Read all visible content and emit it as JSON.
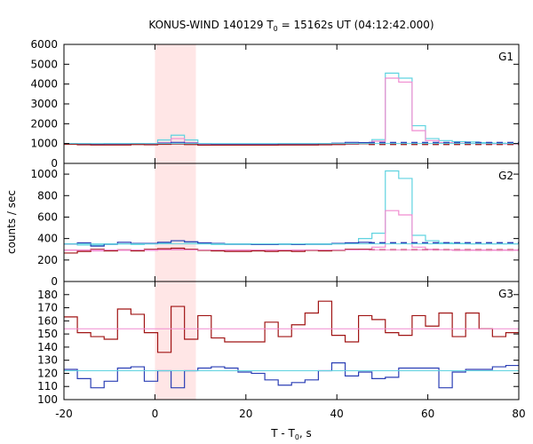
{
  "title": {
    "main": "KONUS-WIND 140129 T",
    "sub": "0",
    "rest": " = 15162s UT (04:12:42.000)"
  },
  "xlabel": {
    "main": "T - T",
    "sub": "0",
    "rest": ", s"
  },
  "ylabel": "counts / sec",
  "colors": {
    "shade": "#ffe6e6",
    "cyan": "#5fd3e0",
    "pink": "#f08cd0",
    "blue": "#2b3fb5",
    "red": "#a01414"
  },
  "chart_data": {
    "type": "line",
    "x_axis": {
      "range": [
        -20,
        80
      ],
      "ticks": [
        -20,
        0,
        20,
        40,
        60,
        80
      ]
    },
    "shaded_interval": [
      0,
      9
    ],
    "bin_width": 2.944,
    "panels": [
      {
        "label": "G1",
        "ylim": [
          0,
          6000
        ],
        "yticks": [
          0,
          1000,
          2000,
          3000,
          4000,
          5000,
          6000
        ],
        "series": [
          {
            "color": "cyan",
            "style": "step",
            "values": [
              1000,
              980,
              980,
              990,
              990,
              1000,
              980,
              1180,
              1420,
              1180,
              960,
              960,
              960,
              960,
              960,
              960,
              960,
              960,
              960,
              960,
              980,
              1000,
              1050,
              1200,
              4550,
              4300,
              1900,
              1250,
              1150,
              1100,
              1080,
              1050,
              1020,
              1000
            ]
          },
          {
            "color": "pink",
            "style": "step",
            "values": [
              980,
              960,
              960,
              960,
              960,
              980,
              960,
              1050,
              1250,
              1050,
              940,
              940,
              940,
              940,
              940,
              940,
              940,
              940,
              940,
              940,
              950,
              970,
              1000,
              1120,
              4300,
              4100,
              1650,
              1150,
              1050,
              1020,
              1000,
              990,
              980,
              980
            ]
          },
          {
            "color": "blue",
            "style": "step",
            "values": [
              1000,
              990,
              980,
              990,
              990,
              1000,
              1000,
              1020,
              1060,
              1020,
              990,
              980,
              980,
              980,
              980,
              980,
              990,
              990,
              990,
              1000,
              1020,
              1060,
              1050
            ]
          },
          {
            "color": "red",
            "style": "step",
            "values": [
              960,
              940,
              930,
              930,
              930,
              950,
              940,
              960,
              980,
              950,
              920,
              920,
              920,
              920,
              920,
              920,
              930,
              930,
              930,
              940,
              950,
              980,
              990
            ]
          },
          {
            "color": "blue",
            "style": "dashed",
            "x": [
              47,
              80
            ],
            "values": [
              1050,
              1050
            ]
          },
          {
            "color": "red",
            "style": "dashed",
            "x": [
              47,
              80
            ],
            "values": [
              960,
              960
            ]
          },
          {
            "color": "cyan",
            "style": "flat",
            "x": [
              -20,
              80
            ],
            "values": [
              1000,
              1000
            ]
          }
        ]
      },
      {
        "label": "G2",
        "ylim": [
          0,
          1100
        ],
        "yticks": [
          0,
          200,
          400,
          600,
          800,
          1000
        ],
        "series": [
          {
            "color": "cyan",
            "style": "step",
            "values": [
              350,
              340,
              340,
              345,
              350,
              345,
              350,
              360,
              380,
              365,
              350,
              345,
              345,
              345,
              345,
              345,
              345,
              345,
              345,
              345,
              350,
              360,
              400,
              450,
              1030,
              960,
              430,
              380,
              360,
              355,
              350,
              350,
              350,
              350
            ]
          },
          {
            "color": "pink",
            "style": "step",
            "values": [
              290,
              290,
              285,
              290,
              290,
              290,
              290,
              295,
              300,
              295,
              290,
              290,
              290,
              290,
              290,
              290,
              290,
              290,
              290,
              290,
              290,
              295,
              300,
              320,
              660,
              620,
              320,
              300,
              295,
              290,
              290,
              290,
              290,
              290
            ]
          },
          {
            "color": "blue",
            "style": "step",
            "values": [
              350,
              360,
              330,
              350,
              365,
              355,
              355,
              365,
              380,
              370,
              360,
              355,
              350,
              350,
              345,
              345,
              350,
              345,
              350,
              350,
              355,
              360,
              365
            ]
          },
          {
            "color": "red",
            "style": "step",
            "values": [
              265,
              280,
              300,
              285,
              295,
              285,
              300,
              305,
              310,
              300,
              290,
              285,
              280,
              280,
              285,
              280,
              285,
              280,
              290,
              285,
              290,
              300,
              300
            ]
          },
          {
            "color": "blue",
            "style": "dashed",
            "x": [
              47,
              80
            ],
            "values": [
              360,
              360
            ]
          },
          {
            "color": "red",
            "style": "dashed",
            "x": [
              47,
              80
            ],
            "values": [
              295,
              295
            ]
          },
          {
            "color": "cyan",
            "style": "flat",
            "x": [
              -20,
              80
            ],
            "values": [
              350,
              350
            ]
          },
          {
            "color": "pink",
            "style": "flat",
            "x": [
              -20,
              80
            ],
            "values": [
              295,
              295
            ]
          }
        ]
      },
      {
        "label": "G3",
        "ylim": [
          100,
          190
        ],
        "yticks": [
          100,
          110,
          120,
          130,
          140,
          150,
          160,
          170,
          180
        ],
        "series": [
          {
            "color": "red",
            "style": "step",
            "values": [
              163,
              151,
              148,
              146,
              169,
              165,
              151,
              136,
              171,
              146,
              164,
              147,
              144,
              144,
              144,
              159,
              148,
              157,
              166,
              175,
              149,
              144,
              164,
              161,
              151,
              149,
              164,
              156,
              166,
              148,
              166,
              154,
              148,
              151,
              151,
              155,
              166,
              162,
              164
            ]
          },
          {
            "color": "blue",
            "style": "step",
            "values": [
              123,
              116,
              109,
              114,
              124,
              125,
              114,
              122,
              109,
              122,
              124,
              125,
              124,
              121,
              120,
              115,
              111,
              113,
              115,
              122,
              128,
              118,
              121,
              116,
              117,
              124,
              124,
              124,
              109,
              121,
              123,
              123,
              125,
              126,
              128,
              132,
              135,
              116,
              128
            ]
          },
          {
            "color": "pink",
            "style": "flat",
            "x": [
              -20,
              80
            ],
            "values": [
              154,
              154
            ]
          },
          {
            "color": "cyan",
            "style": "flat",
            "x": [
              -20,
              80
            ],
            "values": [
              122,
              122
            ]
          }
        ]
      }
    ]
  }
}
